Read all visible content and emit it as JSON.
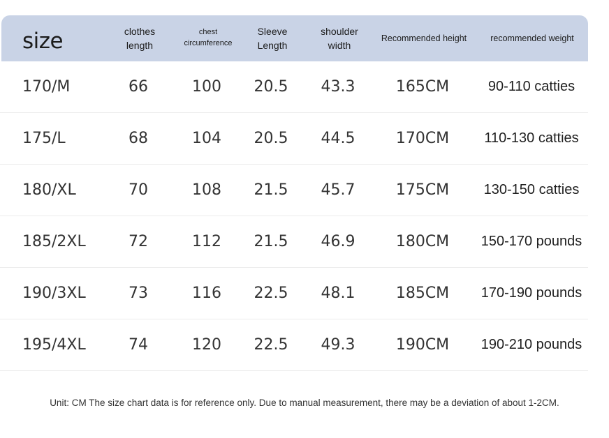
{
  "header": {
    "size": "size",
    "clothes_length": [
      "clothes",
      "length"
    ],
    "chest_circumference": [
      "chest",
      "circumference"
    ],
    "sleeve_length": [
      "Sleeve",
      "Length"
    ],
    "shoulder_width": [
      "shoulder",
      "width"
    ],
    "recommended_height": "Recommended height",
    "recommended_weight": "recommended weight"
  },
  "rows": [
    {
      "size": "170/M",
      "length": "66",
      "chest": "100",
      "sleeve": "20.5",
      "shoulder": "43.3",
      "height": "165CM",
      "weight": "90-110 catties"
    },
    {
      "size": "175/L",
      "length": "68",
      "chest": "104",
      "sleeve": "20.5",
      "shoulder": "44.5",
      "height": "170CM",
      "weight": "110-130 catties"
    },
    {
      "size": "180/XL",
      "length": "70",
      "chest": "108",
      "sleeve": "21.5",
      "shoulder": "45.7",
      "height": "175CM",
      "weight": "130-150 catties"
    },
    {
      "size": "185/2XL",
      "length": "72",
      "chest": "112",
      "sleeve": "21.5",
      "shoulder": "46.9",
      "height": "180CM",
      "weight": "150-170 pounds"
    },
    {
      "size": "190/3XL",
      "length": "73",
      "chest": "116",
      "sleeve": "22.5",
      "shoulder": "48.1",
      "height": "185CM",
      "weight": "170-190 pounds"
    },
    {
      "size": "195/4XL",
      "length": "74",
      "chest": "120",
      "sleeve": "22.5",
      "shoulder": "49.3",
      "height": "190CM",
      "weight": "190-210 pounds"
    }
  ],
  "footnote": "Unit: CM The size chart data is for reference only. Due to manual measurement, there may be a deviation of about 1-2CM.",
  "colors": {
    "header_bg": "#c9d3e6",
    "divider": "#ececec"
  }
}
